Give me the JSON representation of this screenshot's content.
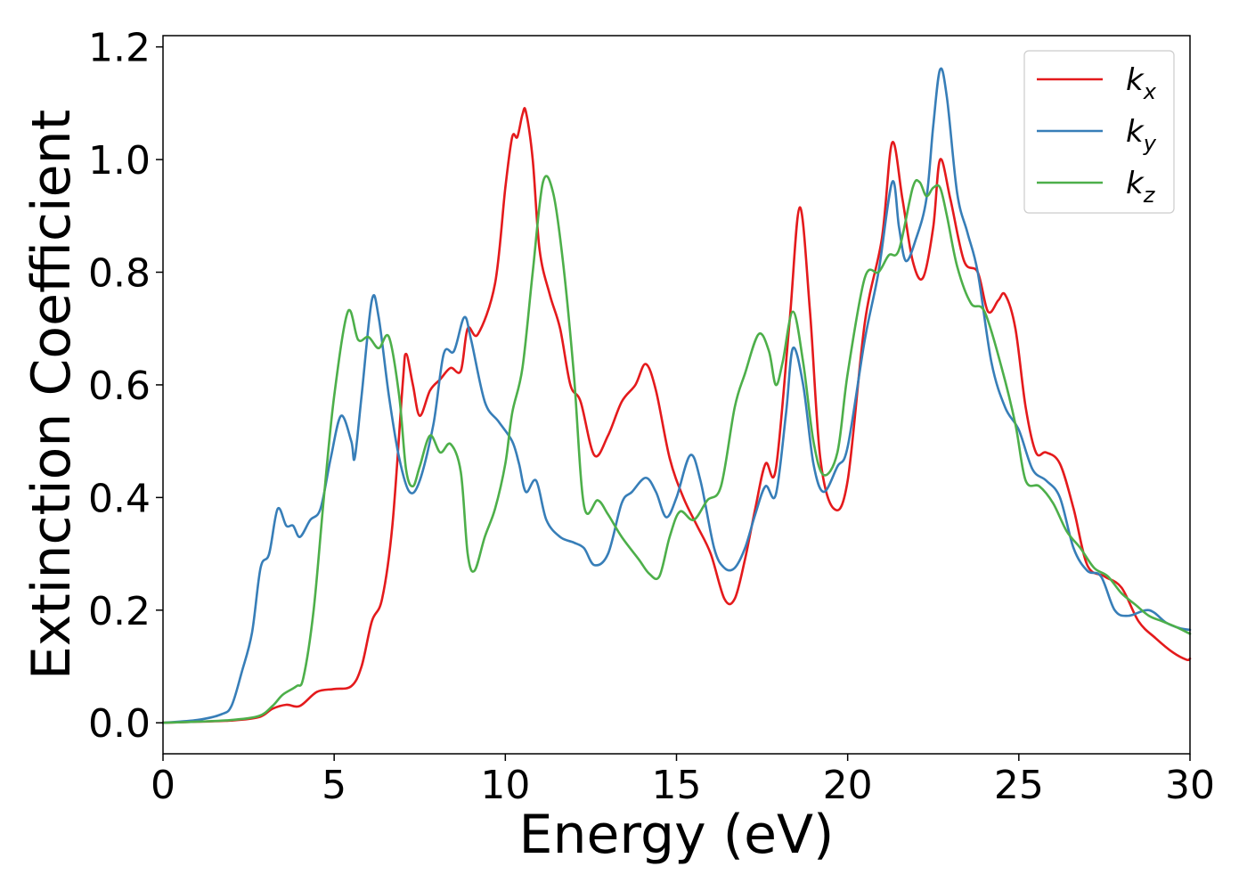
{
  "chart_data": {
    "type": "line",
    "title": "",
    "xlabel": "Energy (eV)",
    "ylabel": "Extinction Coefficient",
    "xlim": [
      0,
      30
    ],
    "ylim": [
      -0.055,
      1.22
    ],
    "xticks": [
      0,
      5,
      10,
      15,
      20,
      25,
      30
    ],
    "xtick_labels": [
      "0",
      "5",
      "10",
      "15",
      "20",
      "25",
      "30"
    ],
    "yticks": [
      0.0,
      0.2,
      0.4,
      0.6,
      0.8,
      1.0,
      1.2
    ],
    "ytick_labels": [
      "0.0",
      "0.2",
      "0.4",
      "0.6",
      "0.8",
      "1.0",
      "1.2"
    ],
    "grid": false,
    "legend_position": "top-right",
    "series": [
      {
        "name": "kx",
        "label_main": "k",
        "label_sub": "x",
        "color": "#e41a1c",
        "points": [
          [
            0,
            0
          ],
          [
            1,
            0.002
          ],
          [
            2,
            0.004
          ],
          [
            2.8,
            0.01
          ],
          [
            3.2,
            0.025
          ],
          [
            3.6,
            0.032
          ],
          [
            4,
            0.03
          ],
          [
            4.5,
            0.055
          ],
          [
            5,
            0.06
          ],
          [
            5.5,
            0.065
          ],
          [
            5.8,
            0.1
          ],
          [
            6.1,
            0.18
          ],
          [
            6.4,
            0.22
          ],
          [
            6.7,
            0.35
          ],
          [
            7,
            0.6
          ],
          [
            7.1,
            0.655
          ],
          [
            7.3,
            0.6
          ],
          [
            7.5,
            0.545
          ],
          [
            7.8,
            0.59
          ],
          [
            8.1,
            0.61
          ],
          [
            8.4,
            0.63
          ],
          [
            8.7,
            0.625
          ],
          [
            8.9,
            0.7
          ],
          [
            9.2,
            0.69
          ],
          [
            9.7,
            0.78
          ],
          [
            10,
            0.95
          ],
          [
            10.2,
            1.04
          ],
          [
            10.35,
            1.04
          ],
          [
            10.5,
            1.08
          ],
          [
            10.6,
            1.085
          ],
          [
            10.8,
            1.0
          ],
          [
            11,
            0.84
          ],
          [
            11.3,
            0.76
          ],
          [
            11.6,
            0.7
          ],
          [
            11.9,
            0.6
          ],
          [
            12.2,
            0.57
          ],
          [
            12.6,
            0.475
          ],
          [
            13,
            0.51
          ],
          [
            13.4,
            0.57
          ],
          [
            13.8,
            0.6
          ],
          [
            14.1,
            0.637
          ],
          [
            14.4,
            0.59
          ],
          [
            14.8,
            0.47
          ],
          [
            15.2,
            0.4
          ],
          [
            15.6,
            0.35
          ],
          [
            16,
            0.3
          ],
          [
            16.4,
            0.22
          ],
          [
            16.7,
            0.22
          ],
          [
            17,
            0.29
          ],
          [
            17.3,
            0.38
          ],
          [
            17.6,
            0.46
          ],
          [
            17.9,
            0.45
          ],
          [
            18.3,
            0.71
          ],
          [
            18.6,
            0.915
          ],
          [
            18.9,
            0.73
          ],
          [
            19.2,
            0.47
          ],
          [
            19.6,
            0.38
          ],
          [
            20,
            0.43
          ],
          [
            20.5,
            0.71
          ],
          [
            21,
            0.86
          ],
          [
            21.3,
            1.03
          ],
          [
            21.6,
            0.93
          ],
          [
            21.9,
            0.82
          ],
          [
            22.2,
            0.79
          ],
          [
            22.5,
            0.88
          ],
          [
            22.7,
            1.0
          ],
          [
            23,
            0.93
          ],
          [
            23.4,
            0.82
          ],
          [
            23.8,
            0.8
          ],
          [
            24.1,
            0.73
          ],
          [
            24.4,
            0.75
          ],
          [
            24.6,
            0.76
          ],
          [
            24.9,
            0.7
          ],
          [
            25.2,
            0.56
          ],
          [
            25.5,
            0.48
          ],
          [
            25.8,
            0.48
          ],
          [
            26.2,
            0.46
          ],
          [
            26.6,
            0.38
          ],
          [
            27,
            0.28
          ],
          [
            27.5,
            0.26
          ],
          [
            28,
            0.24
          ],
          [
            28.5,
            0.18
          ],
          [
            29,
            0.15
          ],
          [
            29.5,
            0.125
          ],
          [
            29.9,
            0.112
          ],
          [
            30,
            0.114
          ]
        ]
      },
      {
        "name": "ky",
        "label_main": "k",
        "label_sub": "y",
        "color": "#377eb8",
        "points": [
          [
            0,
            0
          ],
          [
            1,
            0.005
          ],
          [
            1.7,
            0.015
          ],
          [
            2,
            0.03
          ],
          [
            2.3,
            0.09
          ],
          [
            2.6,
            0.16
          ],
          [
            2.85,
            0.275
          ],
          [
            3.1,
            0.3
          ],
          [
            3.35,
            0.38
          ],
          [
            3.6,
            0.35
          ],
          [
            3.8,
            0.35
          ],
          [
            4,
            0.33
          ],
          [
            4.3,
            0.36
          ],
          [
            4.6,
            0.38
          ],
          [
            4.9,
            0.47
          ],
          [
            5.2,
            0.545
          ],
          [
            5.5,
            0.5
          ],
          [
            5.6,
            0.47
          ],
          [
            5.8,
            0.58
          ],
          [
            6.1,
            0.75
          ],
          [
            6.3,
            0.72
          ],
          [
            6.6,
            0.58
          ],
          [
            6.9,
            0.47
          ],
          [
            7.2,
            0.41
          ],
          [
            7.5,
            0.43
          ],
          [
            7.9,
            0.53
          ],
          [
            8.2,
            0.655
          ],
          [
            8.5,
            0.66
          ],
          [
            8.8,
            0.72
          ],
          [
            9,
            0.68
          ],
          [
            9.4,
            0.57
          ],
          [
            9.8,
            0.535
          ],
          [
            10.2,
            0.5
          ],
          [
            10.4,
            0.46
          ],
          [
            10.6,
            0.41
          ],
          [
            10.9,
            0.43
          ],
          [
            11.2,
            0.36
          ],
          [
            11.6,
            0.33
          ],
          [
            12,
            0.32
          ],
          [
            12.3,
            0.31
          ],
          [
            12.6,
            0.28
          ],
          [
            13,
            0.3
          ],
          [
            13.4,
            0.39
          ],
          [
            13.7,
            0.41
          ],
          [
            14.1,
            0.435
          ],
          [
            14.4,
            0.41
          ],
          [
            14.7,
            0.365
          ],
          [
            15,
            0.4
          ],
          [
            15.4,
            0.475
          ],
          [
            15.7,
            0.43
          ],
          [
            16.1,
            0.31
          ],
          [
            16.4,
            0.275
          ],
          [
            16.7,
            0.275
          ],
          [
            17,
            0.31
          ],
          [
            17.3,
            0.37
          ],
          [
            17.6,
            0.42
          ],
          [
            17.9,
            0.405
          ],
          [
            18.2,
            0.55
          ],
          [
            18.4,
            0.665
          ],
          [
            18.7,
            0.6
          ],
          [
            19,
            0.46
          ],
          [
            19.3,
            0.41
          ],
          [
            19.7,
            0.455
          ],
          [
            20,
            0.49
          ],
          [
            20.5,
            0.68
          ],
          [
            20.9,
            0.8
          ],
          [
            21.3,
            0.96
          ],
          [
            21.5,
            0.88
          ],
          [
            21.7,
            0.82
          ],
          [
            22,
            0.86
          ],
          [
            22.3,
            0.93
          ],
          [
            22.5,
            1.06
          ],
          [
            22.7,
            1.16
          ],
          [
            22.9,
            1.11
          ],
          [
            23.2,
            0.94
          ],
          [
            23.5,
            0.87
          ],
          [
            23.8,
            0.8
          ],
          [
            24.2,
            0.64
          ],
          [
            24.6,
            0.56
          ],
          [
            25,
            0.52
          ],
          [
            25.4,
            0.45
          ],
          [
            25.8,
            0.43
          ],
          [
            26.2,
            0.4
          ],
          [
            26.6,
            0.31
          ],
          [
            27,
            0.27
          ],
          [
            27.4,
            0.26
          ],
          [
            27.8,
            0.2
          ],
          [
            28.2,
            0.19
          ],
          [
            28.8,
            0.2
          ],
          [
            29.3,
            0.178
          ],
          [
            29.7,
            0.168
          ],
          [
            30,
            0.165
          ]
        ]
      },
      {
        "name": "kz",
        "label_main": "k",
        "label_sub": "z",
        "color": "#4daf4a",
        "points": [
          [
            0,
            0
          ],
          [
            1,
            0.002
          ],
          [
            2,
            0.005
          ],
          [
            2.8,
            0.012
          ],
          [
            3.2,
            0.03
          ],
          [
            3.5,
            0.05
          ],
          [
            3.9,
            0.065
          ],
          [
            4.1,
            0.08
          ],
          [
            4.4,
            0.2
          ],
          [
            4.7,
            0.4
          ],
          [
            5,
            0.58
          ],
          [
            5.4,
            0.73
          ],
          [
            5.7,
            0.68
          ],
          [
            6,
            0.685
          ],
          [
            6.3,
            0.665
          ],
          [
            6.6,
            0.685
          ],
          [
            6.9,
            0.58
          ],
          [
            7.1,
            0.45
          ],
          [
            7.3,
            0.42
          ],
          [
            7.5,
            0.455
          ],
          [
            7.8,
            0.51
          ],
          [
            8.1,
            0.48
          ],
          [
            8.4,
            0.495
          ],
          [
            8.7,
            0.445
          ],
          [
            8.9,
            0.3
          ],
          [
            9.1,
            0.27
          ],
          [
            9.4,
            0.33
          ],
          [
            9.7,
            0.38
          ],
          [
            10,
            0.46
          ],
          [
            10.2,
            0.55
          ],
          [
            10.5,
            0.63
          ],
          [
            10.8,
            0.8
          ],
          [
            11.1,
            0.96
          ],
          [
            11.4,
            0.94
          ],
          [
            11.7,
            0.81
          ],
          [
            12,
            0.62
          ],
          [
            12.3,
            0.385
          ],
          [
            12.7,
            0.395
          ],
          [
            13,
            0.37
          ],
          [
            13.4,
            0.33
          ],
          [
            13.9,
            0.29
          ],
          [
            14.2,
            0.265
          ],
          [
            14.5,
            0.26
          ],
          [
            14.8,
            0.33
          ],
          [
            15.1,
            0.375
          ],
          [
            15.5,
            0.36
          ],
          [
            15.9,
            0.395
          ],
          [
            16.3,
            0.42
          ],
          [
            16.7,
            0.56
          ],
          [
            17,
            0.62
          ],
          [
            17.4,
            0.69
          ],
          [
            17.7,
            0.66
          ],
          [
            17.9,
            0.6
          ],
          [
            18.1,
            0.64
          ],
          [
            18.4,
            0.73
          ],
          [
            18.7,
            0.64
          ],
          [
            19,
            0.5
          ],
          [
            19.3,
            0.44
          ],
          [
            19.7,
            0.48
          ],
          [
            20,
            0.62
          ],
          [
            20.5,
            0.79
          ],
          [
            20.9,
            0.8
          ],
          [
            21.2,
            0.83
          ],
          [
            21.5,
            0.84
          ],
          [
            21.9,
            0.95
          ],
          [
            22.1,
            0.96
          ],
          [
            22.3,
            0.935
          ],
          [
            22.5,
            0.95
          ],
          [
            22.7,
            0.95
          ],
          [
            22.9,
            0.9
          ],
          [
            23.2,
            0.81
          ],
          [
            23.6,
            0.745
          ],
          [
            24,
            0.73
          ],
          [
            24.5,
            0.63
          ],
          [
            24.9,
            0.53
          ],
          [
            25.2,
            0.43
          ],
          [
            25.6,
            0.42
          ],
          [
            26,
            0.39
          ],
          [
            26.4,
            0.34
          ],
          [
            26.8,
            0.31
          ],
          [
            27.2,
            0.275
          ],
          [
            27.6,
            0.26
          ],
          [
            28,
            0.23
          ],
          [
            28.4,
            0.21
          ],
          [
            28.8,
            0.19
          ],
          [
            29.2,
            0.18
          ],
          [
            29.6,
            0.17
          ],
          [
            30,
            0.158
          ]
        ]
      }
    ]
  }
}
